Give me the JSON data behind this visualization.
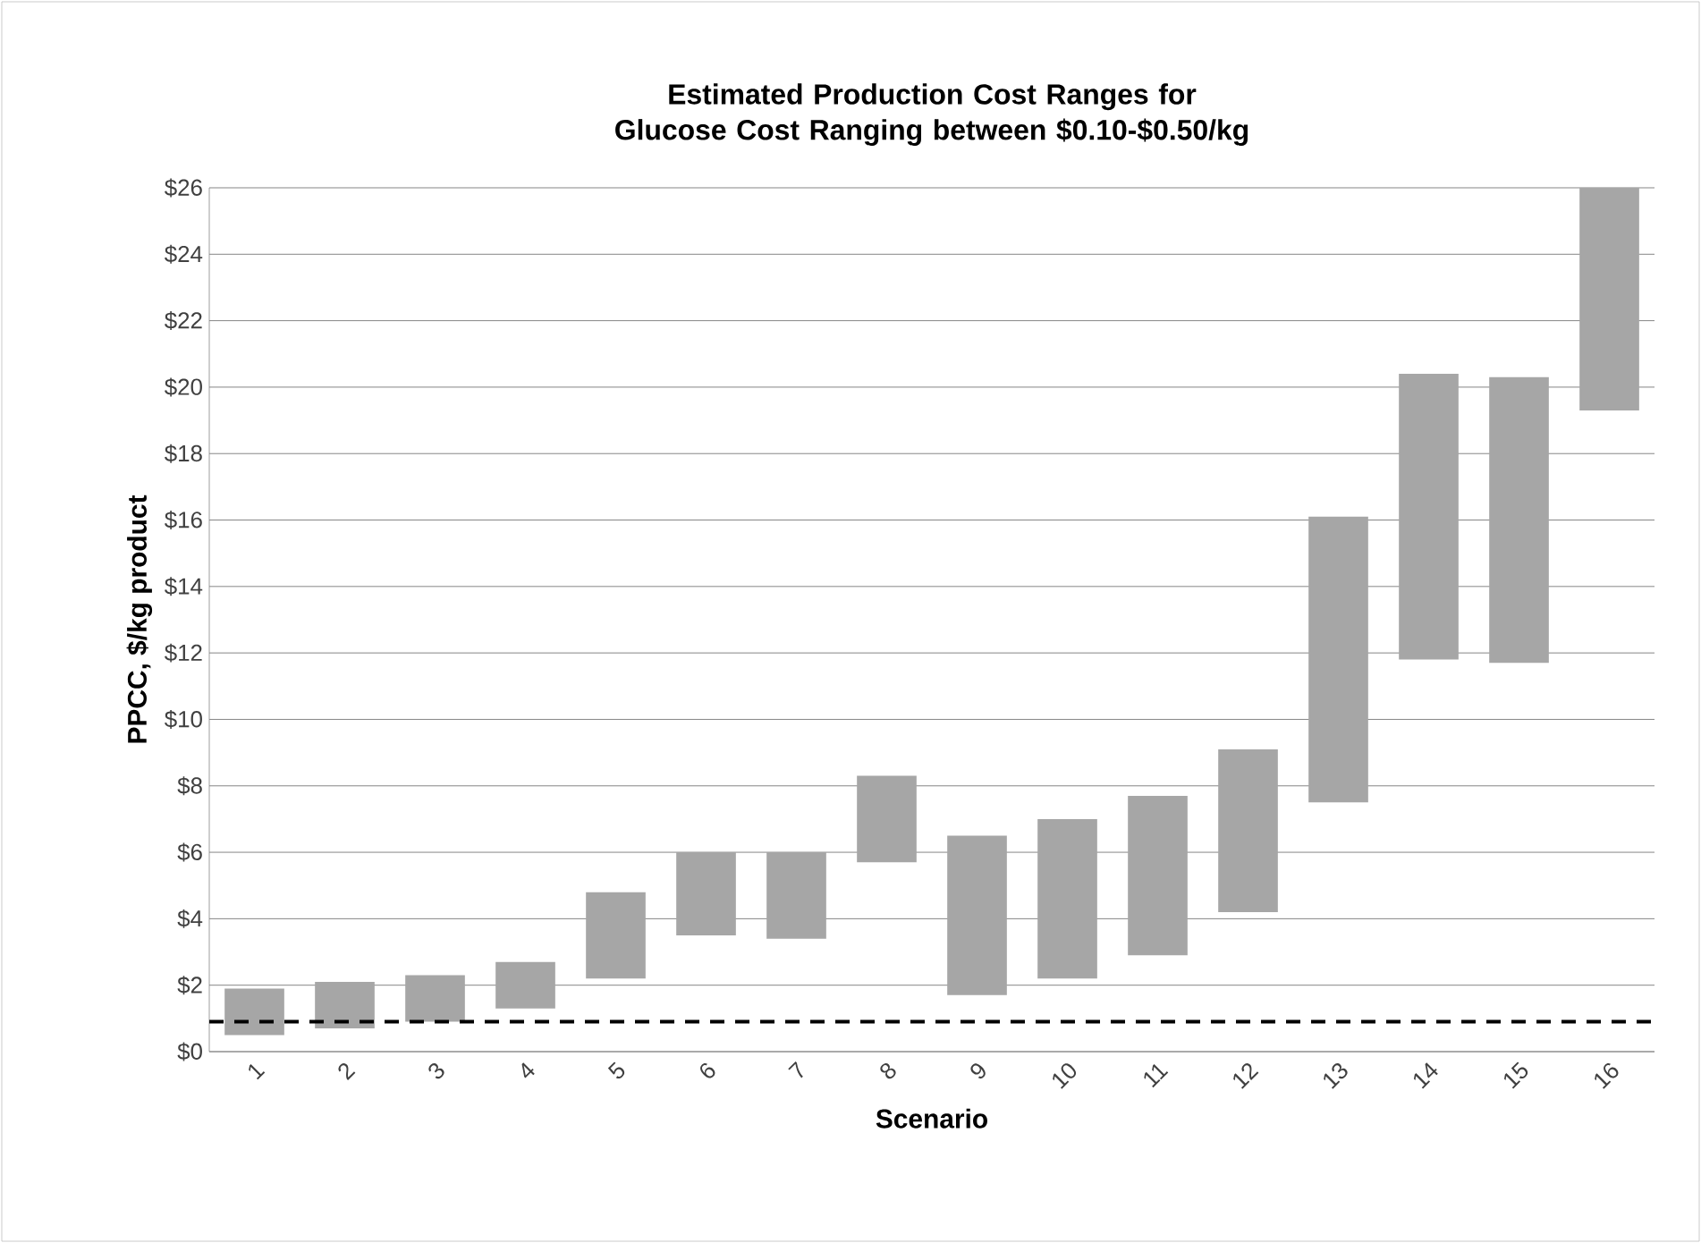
{
  "chart_data": {
    "type": "bar",
    "title": "Estimated Production Cost Ranges for Glucose Cost Ranging between $0.10-$0.50/kg",
    "xlabel": "Scenario",
    "ylabel": "PPCC, $/kg product",
    "categories": [
      "1",
      "2",
      "3",
      "4",
      "5",
      "6",
      "7",
      "8",
      "9",
      "10",
      "11",
      "12",
      "13",
      "14",
      "15",
      "16"
    ],
    "base": [
      0.5,
      0.7,
      0.9,
      1.3,
      2.2,
      3.5,
      3.4,
      5.7,
      1.7,
      2.2,
      2.9,
      4.2,
      7.5,
      11.8,
      11.7,
      19.3
    ],
    "values": [
      1.4,
      1.4,
      1.4,
      1.4,
      2.6,
      2.5,
      2.6,
      2.6,
      4.8,
      4.8,
      4.8,
      4.9,
      8.6,
      8.6,
      8.6,
      6.7
    ],
    "color": "#a6a6a6",
    "ylim": [
      0,
      26
    ],
    "yticks": [
      {
        "value": 0,
        "label": "$0"
      },
      {
        "value": 2,
        "label": "$2"
      },
      {
        "value": 4,
        "label": "$4"
      },
      {
        "value": 6,
        "label": "$6"
      },
      {
        "value": 8,
        "label": "$8"
      },
      {
        "value": 10,
        "label": "$10"
      },
      {
        "value": 12,
        "label": "$12"
      },
      {
        "value": 14,
        "label": "$14"
      },
      {
        "value": 16,
        "label": "$16"
      },
      {
        "value": 18,
        "label": "$18"
      },
      {
        "value": 20,
        "label": "$20"
      },
      {
        "value": 22,
        "label": "$22"
      },
      {
        "value": 24,
        "label": "$24"
      },
      {
        "value": 26,
        "label": "$26"
      }
    ],
    "grid": "y",
    "ref_lines": [
      {
        "axis": "y",
        "value": 0.9,
        "color": "#000000",
        "line_style": "dashed"
      }
    ]
  }
}
